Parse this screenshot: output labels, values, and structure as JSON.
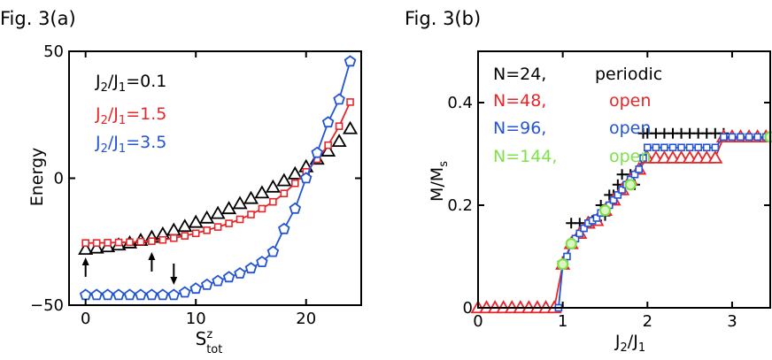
{
  "chart_data": [
    {
      "type": "line",
      "title": "Fig. 3(a)",
      "ylabel": "Energy",
      "xlabel_main": "S",
      "xlabel_sup": "z",
      "xlabel_sub": "tot",
      "xlim": [
        -1.5,
        25
      ],
      "ylim": [
        -50,
        50
      ],
      "xticks": [
        0,
        10,
        20
      ],
      "yticks": [
        -50,
        0,
        50
      ],
      "ytick_labels": [
        "−50",
        "0",
        "50"
      ],
      "grid": false,
      "series": [
        {
          "name_main": "J",
          "name_sub1": "2",
          "name_mid": "/J",
          "name_sub2": "1",
          "name_tail": "=0.1",
          "color": "#000000",
          "marker": "triangle",
          "connected": false,
          "x": [
            0,
            1,
            2,
            3,
            4,
            5,
            6,
            7,
            8,
            9,
            10,
            11,
            12,
            13,
            14,
            15,
            16,
            17,
            18,
            19,
            20,
            21,
            22,
            23,
            24
          ],
          "y": [
            -28,
            -27.5,
            -27,
            -26.3,
            -25.5,
            -24.5,
            -23.3,
            -22,
            -20.5,
            -19,
            -17.4,
            -15.7,
            -13.9,
            -12,
            -10,
            -8,
            -5.8,
            -3.5,
            -1,
            1.7,
            4.5,
            7.5,
            10.7,
            14.5,
            19.5
          ]
        },
        {
          "name_main": "J",
          "name_sub1": "2",
          "name_mid": "/J",
          "name_sub2": "1",
          "name_tail": "=1.5",
          "color": "#e8262a",
          "marker": "square",
          "connected": true,
          "x": [
            0,
            1,
            2,
            3,
            4,
            5,
            6,
            7,
            8,
            9,
            10,
            11,
            12,
            13,
            14,
            15,
            16,
            17,
            18,
            19,
            20,
            21,
            22,
            23,
            24
          ],
          "y": [
            -25.5,
            -25.5,
            -25.4,
            -25.3,
            -25.2,
            -25,
            -24.8,
            -24.3,
            -23.6,
            -22.7,
            -21.7,
            -20.5,
            -19.2,
            -17.8,
            -16.2,
            -14.3,
            -12,
            -9.3,
            -6,
            -2,
            2.5,
            7.5,
            13,
            20.5,
            30
          ]
        },
        {
          "name_main": "J",
          "name_sub1": "2",
          "name_mid": "/J",
          "name_sub2": "1",
          "name_tail": "=3.5",
          "color": "#2354d4",
          "marker": "pentagon",
          "connected": true,
          "x": [
            0,
            1,
            2,
            3,
            4,
            5,
            6,
            7,
            8,
            9,
            10,
            11,
            12,
            13,
            14,
            15,
            16,
            17,
            18,
            19,
            20,
            21,
            22,
            23,
            24
          ],
          "y": [
            -46,
            -46,
            -46,
            -46,
            -46,
            -46,
            -46,
            -46,
            -46,
            -45,
            -43.5,
            -42,
            -40.5,
            -39,
            -37.5,
            -35.5,
            -33,
            -29,
            -20,
            -12,
            0,
            10,
            22,
            31,
            46
          ]
        }
      ],
      "arrows": [
        {
          "x": 0,
          "direction": "up"
        },
        {
          "x": 6,
          "direction": "up"
        },
        {
          "x": 8,
          "direction": "down"
        }
      ]
    },
    {
      "type": "scatter",
      "title": "Fig. 3(b)",
      "ylabel_main": "M/M",
      "ylabel_sub": "s",
      "xlabel_main": "J",
      "xlabel_sub1": "2",
      "xlabel_mid": "/J",
      "xlabel_sub2": "1",
      "xlim": [
        0,
        3.45
      ],
      "ylim": [
        0,
        0.5
      ],
      "xticks": [
        0,
        1,
        2,
        3
      ],
      "yticks": [
        0,
        0.2,
        0.4
      ],
      "ytick_labels": [
        "0",
        "0.2",
        "0.4"
      ],
      "grid": false,
      "series": [
        {
          "label_name": "N=24,",
          "label_type": "periodic",
          "color": "#000000",
          "marker": "plus",
          "connected": false,
          "x": [
            1.0,
            1.1,
            1.2,
            1.3,
            1.35,
            1.4,
            1.45,
            1.5,
            1.55,
            1.6,
            1.65,
            1.7,
            1.8,
            1.85,
            1.95,
            2.0,
            2.1,
            2.2,
            2.3,
            2.4,
            2.5,
            2.6,
            2.7,
            2.8,
            2.9
          ],
          "y": [
            0.09,
            0.165,
            0.165,
            0.165,
            0.17,
            0.17,
            0.2,
            0.18,
            0.22,
            0.22,
            0.24,
            0.26,
            0.26,
            0.24,
            0.34,
            0.34,
            0.34,
            0.34,
            0.34,
            0.34,
            0.34,
            0.34,
            0.34,
            0.34,
            0.34
          ]
        },
        {
          "label_name": "N=48,",
          "label_type": "open",
          "color": "#e8262a",
          "marker": "triangle",
          "connected": true,
          "x": [
            0.0,
            0.1,
            0.2,
            0.3,
            0.4,
            0.5,
            0.6,
            0.7,
            0.8,
            0.9,
            1.0,
            1.1,
            1.2,
            1.3,
            1.4,
            1.5,
            1.6,
            1.7,
            1.8,
            1.9,
            2.0,
            2.1,
            2.2,
            2.3,
            2.4,
            2.5,
            2.6,
            2.7,
            2.8,
            2.9,
            3.0,
            3.1,
            3.2,
            3.3,
            3.4
          ],
          "y": [
            0,
            0,
            0,
            0,
            0,
            0,
            0,
            0,
            0,
            0,
            0.085,
            0.125,
            0.145,
            0.165,
            0.17,
            0.19,
            0.21,
            0.23,
            0.25,
            0.27,
            0.292,
            0.292,
            0.292,
            0.292,
            0.292,
            0.292,
            0.292,
            0.292,
            0.292,
            0.333,
            0.333,
            0.333,
            0.333,
            0.333,
            0.333
          ]
        },
        {
          "label_name": "N=96,",
          "label_type": "open",
          "color": "#2354d4",
          "marker": "square",
          "connected": true,
          "x": [
            0.95,
            1.0,
            1.05,
            1.1,
            1.15,
            1.2,
            1.25,
            1.3,
            1.35,
            1.4,
            1.45,
            1.5,
            1.55,
            1.6,
            1.65,
            1.7,
            1.75,
            1.8,
            1.85,
            1.9,
            1.95,
            2.0,
            2.1,
            2.2,
            2.3,
            2.4,
            2.5,
            2.6,
            2.7,
            2.8,
            2.9,
            3.0,
            3.1,
            3.2,
            3.3,
            3.4
          ],
          "y": [
            0,
            0.085,
            0.1,
            0.125,
            0.135,
            0.145,
            0.155,
            0.165,
            0.17,
            0.175,
            0.185,
            0.19,
            0.2,
            0.21,
            0.22,
            0.23,
            0.24,
            0.25,
            0.26,
            0.27,
            0.292,
            0.3125,
            0.3125,
            0.3125,
            0.3125,
            0.3125,
            0.3125,
            0.3125,
            0.3125,
            0.3125,
            0.333,
            0.333,
            0.333,
            0.333,
            0.333,
            0.333
          ]
        },
        {
          "label_name": "N=144,",
          "label_type": "open",
          "color": "#7ee04a",
          "marker": "circle",
          "connected": false,
          "x": [
            1.0,
            1.1,
            1.5,
            1.8,
            3.45
          ],
          "y": [
            0.085,
            0.125,
            0.19,
            0.24,
            0.333
          ]
        }
      ]
    }
  ]
}
